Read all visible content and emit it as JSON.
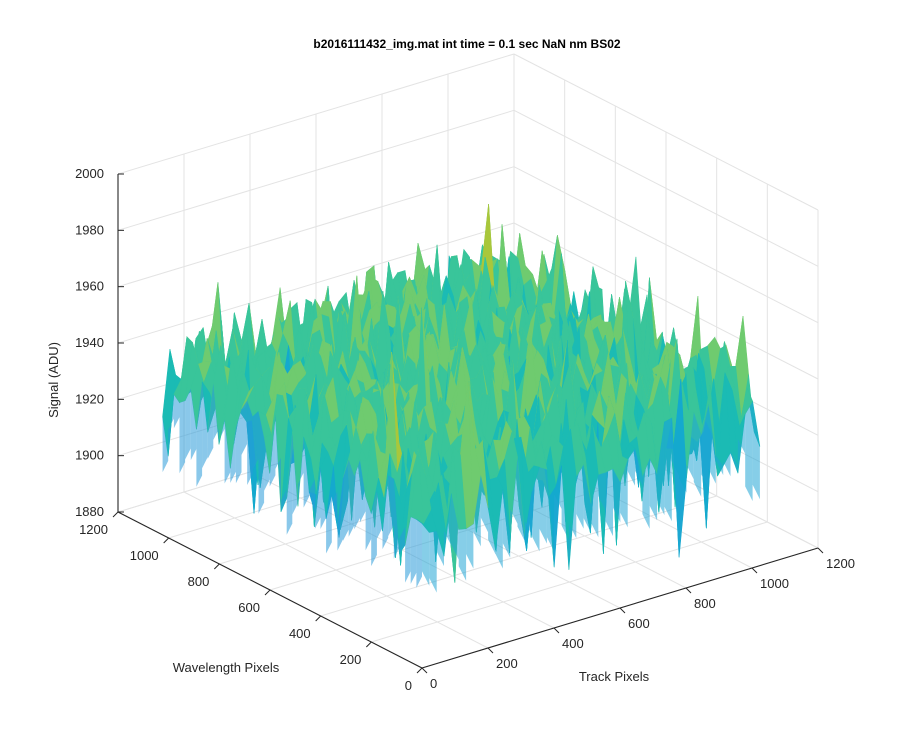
{
  "chart_data": {
    "type": "surface",
    "title": "b2016111432_img.mat int time = 0.1 sec  NaN nm BS02",
    "xlabel": "Track Pixels",
    "ylabel": "Wavelength Pixels",
    "zlabel": "Signal (ADU)",
    "xlim": [
      0,
      1200
    ],
    "ylim": [
      0,
      1200
    ],
    "zlim": [
      1880,
      2000
    ],
    "x_ticks": [
      "0",
      "200",
      "400",
      "600",
      "800",
      "1000",
      "1200"
    ],
    "y_ticks": [
      "0",
      "200",
      "400",
      "600",
      "800",
      "1000",
      "1200"
    ],
    "z_ticks": [
      "1880",
      "1900",
      "1920",
      "1940",
      "1960",
      "1980",
      "2000"
    ],
    "grid": true,
    "colormap": "parula",
    "surface_summary": {
      "extent_x": [
        0,
        1024
      ],
      "extent_y": [
        0,
        1024
      ],
      "typical_level": 1940,
      "noise_range": [
        1905,
        1960
      ],
      "min_spike": 1880,
      "max_spike": 1992
    }
  }
}
